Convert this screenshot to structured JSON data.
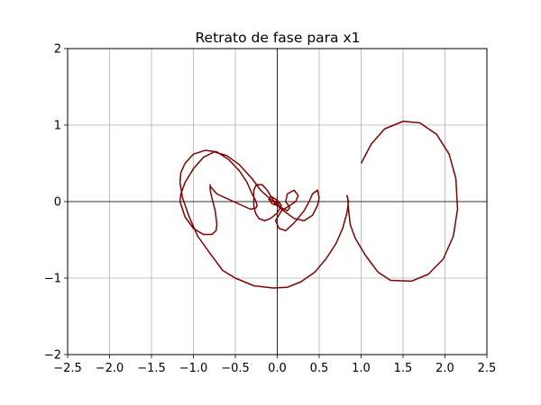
{
  "chart_data": {
    "type": "line",
    "title": "Retrato de fase para x1",
    "xlabel": "",
    "ylabel": "",
    "xlim": [
      -2.5,
      2.5
    ],
    "ylim": [
      -2,
      2
    ],
    "xticks": [
      -2.5,
      -2.0,
      -1.5,
      -1.0,
      -0.5,
      0.0,
      0.5,
      1.0,
      1.5,
      2.0,
      2.5
    ],
    "xtick_labels": [
      "−2.5",
      "−2.0",
      "−1.5",
      "−1.0",
      "−0.5",
      "0.0",
      "0.5",
      "1.0",
      "1.5",
      "2.0",
      "2.5"
    ],
    "yticks": [
      -2,
      -1,
      0,
      1,
      2
    ],
    "ytick_labels": [
      "−2",
      "−1",
      "0",
      "1",
      "2"
    ],
    "grid": true,
    "axis_lines_at_zero": true,
    "series": [
      {
        "color": "#800000",
        "x": [
          1.0,
          1.12,
          1.28,
          1.5,
          1.7,
          1.9,
          2.05,
          2.13,
          2.15,
          2.1,
          1.98,
          1.8,
          1.6,
          1.35,
          1.2,
          1.05,
          0.93,
          0.87,
          0.85,
          0.84,
          0.83,
          0.85,
          0.83,
          0.78,
          0.7,
          0.58,
          0.45,
          0.28,
          0.12,
          -0.05,
          -0.28,
          -0.5,
          -0.65,
          -0.8,
          -0.95,
          -1.05,
          -1.13,
          -1.16,
          -1.15,
          -1.1,
          -1.0,
          -0.86,
          -0.72,
          -0.58,
          -0.45,
          -0.36,
          -0.3,
          -0.26,
          -0.24,
          -0.25,
          -0.32,
          -0.42,
          -0.58,
          -0.72,
          -0.8,
          -0.8,
          -0.8,
          -0.78,
          -0.74,
          -0.72,
          -0.73,
          -0.78,
          -0.88,
          -1.0,
          -1.1,
          -1.16,
          -1.15,
          -1.1,
          -1.0,
          -0.88,
          -0.75,
          -0.6,
          -0.45,
          -0.3,
          -0.2,
          -0.05,
          0.05,
          0.2,
          0.32,
          0.42,
          0.48,
          0.5,
          0.48,
          0.42,
          0.38,
          0.32,
          0.2,
          0.1,
          0.02,
          -0.02,
          0.05,
          0.15,
          0.22,
          0.25,
          0.2,
          0.12,
          0.1,
          0.15,
          0.12,
          0.05,
          -0.05,
          -0.12,
          -0.18,
          -0.25,
          -0.28,
          -0.28,
          -0.28,
          -0.26,
          -0.22,
          -0.15,
          -0.08,
          0.0,
          0.05,
          0.0,
          -0.08,
          -0.1,
          -0.06,
          0.0,
          0.02,
          0.0,
          -0.02,
          0.0
        ],
        "y": [
          0.5,
          0.75,
          0.95,
          1.05,
          1.03,
          0.88,
          0.62,
          0.3,
          -0.1,
          -0.45,
          -0.75,
          -0.95,
          -1.04,
          -1.03,
          -0.92,
          -0.7,
          -0.48,
          -0.3,
          -0.1,
          0.05,
          0.08,
          0.0,
          -0.15,
          -0.35,
          -0.55,
          -0.75,
          -0.92,
          -1.05,
          -1.12,
          -1.13,
          -1.1,
          -1.0,
          -0.9,
          -0.68,
          -0.45,
          -0.2,
          0.05,
          0.25,
          0.38,
          0.5,
          0.62,
          0.67,
          0.65,
          0.55,
          0.4,
          0.25,
          0.1,
          0.02,
          -0.05,
          -0.08,
          -0.1,
          -0.05,
          0.03,
          0.1,
          0.2,
          0.22,
          0.15,
          0.05,
          -0.12,
          -0.3,
          -0.38,
          -0.43,
          -0.43,
          -0.35,
          -0.2,
          0.0,
          0.1,
          0.25,
          0.43,
          0.58,
          0.65,
          0.6,
          0.48,
          0.3,
          0.15,
          0.0,
          -0.1,
          -0.22,
          -0.25,
          -0.18,
          -0.05,
          0.05,
          0.15,
          0.1,
          0.0,
          -0.12,
          -0.28,
          -0.38,
          -0.35,
          -0.25,
          -0.12,
          -0.05,
          0.0,
          0.08,
          0.15,
          0.1,
          0.0,
          -0.08,
          -0.12,
          -0.08,
          0.02,
          0.15,
          0.22,
          0.22,
          0.15,
          0.05,
          -0.05,
          -0.15,
          -0.22,
          -0.25,
          -0.22,
          -0.15,
          -0.05,
          0.02,
          0.07,
          0.03,
          -0.03,
          -0.05,
          -0.02,
          0.02,
          0.0,
          0.0
        ]
      }
    ]
  }
}
